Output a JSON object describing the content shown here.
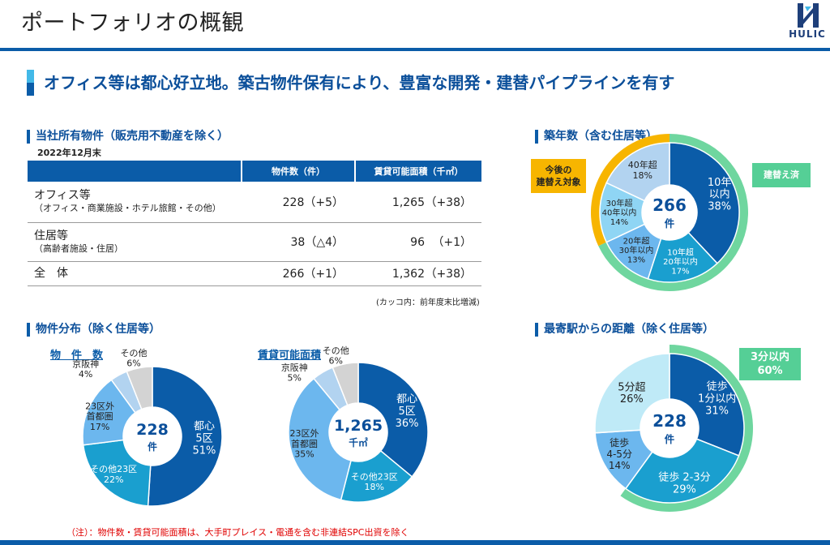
{
  "header": {
    "title": "ポートフォリオの概観",
    "logo_text": "HULIC"
  },
  "headline": "オフィス等は都心好立地。築古物件保有により、豊富な開発・建替パイプラインを有す",
  "table_section": {
    "title": "当社所有物件（販売用不動産を除く）",
    "as_of": "2022年12月末",
    "columns": [
      "",
      "物件数（件）",
      "賃貸可能面積（千㎡）"
    ],
    "rows": [
      {
        "label": "オフィス等",
        "sub": "（オフィス・商業施設・ホテル旅館・その他）",
        "count": "228（+5）",
        "area": "1,265",
        "area_change": "（+38）"
      },
      {
        "label": "住居等",
        "sub": "（高齢者施設・住居）",
        "count": "38（△4）",
        "area": "96",
        "area_change": "（+1）"
      },
      {
        "label": "全　体",
        "sub": "",
        "count": "266（+1）",
        "area": "1,362",
        "area_change": "（+38）"
      }
    ],
    "note": "(カッコ内：前年度末比増減)"
  },
  "distribution_section": {
    "title": "物件分布（除く住居等）"
  },
  "building_age_section": {
    "title": "築年数（含む住居等）"
  },
  "station_section": {
    "title": "最寄駅からの距離（除く住居等）"
  },
  "charts": {
    "count": {
      "subtitle": "物　件　数",
      "center_value": "228",
      "center_unit": "件",
      "slices": [
        {
          "lines": [
            "都心",
            "5区",
            "51%"
          ],
          "color": "#0b5ca8"
        },
        {
          "lines": [
            "その他23区",
            "22%"
          ],
          "color": "#1a9fcf"
        },
        {
          "lines": [
            "23区外",
            "首都圏",
            "17%"
          ],
          "color": "#6cb7ee"
        },
        {
          "lines": [
            "京阪神",
            "4%"
          ],
          "color": "#b2d3f0"
        },
        {
          "lines": [
            "その他",
            "6%"
          ],
          "color": "#d3d3d3"
        }
      ]
    },
    "area": {
      "subtitle": "賃貸可能面積",
      "center_value": "1,265",
      "center_unit": "千㎡",
      "slices": [
        {
          "lines": [
            "都心",
            "5区",
            "36%"
          ],
          "color": "#0b5ca8"
        },
        {
          "lines": [
            "その他23区",
            "18%"
          ],
          "color": "#1a9fcf"
        },
        {
          "lines": [
            "23区外",
            "首都圏",
            "35%"
          ],
          "color": "#6cb7ee"
        },
        {
          "lines": [
            "京阪神",
            "5%"
          ],
          "color": "#b2d3f0"
        },
        {
          "lines": [
            "その他",
            "6%"
          ],
          "color": "#d3d3d3"
        }
      ]
    },
    "age": {
      "center_value": "266",
      "center_unit": "件",
      "slices": [
        {
          "lines": [
            "10年",
            "以内",
            "38%"
          ],
          "color": "#0b5ca8"
        },
        {
          "lines": [
            "10年超",
            "20年以内",
            "17%"
          ],
          "color": "#1a9fcf"
        },
        {
          "lines": [
            "20年超",
            "30年以内",
            "13%"
          ],
          "color": "#6cb7ee"
        },
        {
          "lines": [
            "30年超",
            "40年以内",
            "14%"
          ],
          "color": "#8fd5f4"
        },
        {
          "lines": [
            "40年超",
            "18%"
          ],
          "color": "#b2d3f0"
        }
      ],
      "callout_left": [
        "今後の",
        "建替え対象"
      ],
      "callout_right": "建替え済"
    },
    "distance": {
      "center_value": "228",
      "center_unit": "件",
      "slices": [
        {
          "lines": [
            "徒歩",
            "1分以内",
            "31%"
          ],
          "color": "#0b5ca8"
        },
        {
          "lines": [
            "徒歩 2-3分",
            "29%"
          ],
          "color": "#1a9fcf"
        },
        {
          "lines": [
            "徒歩",
            "4-5分",
            "14%"
          ],
          "color": "#6cb7ee"
        },
        {
          "lines": [
            "5分超",
            "26%"
          ],
          "color": "#bfeaf7"
        }
      ],
      "callout": [
        "3分以内",
        "60%"
      ]
    }
  },
  "chart_data": [
    {
      "type": "pie",
      "title": "物　件　数",
      "categories": [
        "都心5区",
        "その他23区",
        "23区外首都圏",
        "京阪神",
        "その他"
      ],
      "values": [
        51,
        22,
        17,
        4,
        6
      ]
    },
    {
      "type": "pie",
      "title": "賃貸可能面積",
      "categories": [
        "都心5区",
        "その他23区",
        "23区外首都圏",
        "京阪神",
        "その他"
      ],
      "values": [
        36,
        18,
        35,
        5,
        6
      ]
    },
    {
      "type": "pie",
      "title": "築年数（含む住居等）",
      "categories": [
        "10年以内",
        "10年超20年以内",
        "20年超30年以内",
        "30年超40年以内",
        "40年超"
      ],
      "values": [
        38,
        17,
        13,
        14,
        18
      ]
    },
    {
      "type": "pie",
      "title": "最寄駅からの距離（除く住居等）",
      "categories": [
        "徒歩1分以内",
        "徒歩2-3分",
        "徒歩4-5分",
        "5分超"
      ],
      "values": [
        31,
        29,
        14,
        26
      ]
    }
  ],
  "footnote": "（注）：物件数・賃貸可能面積は、大手町プレイス・電通を含む非連結SPC出資を除く"
}
